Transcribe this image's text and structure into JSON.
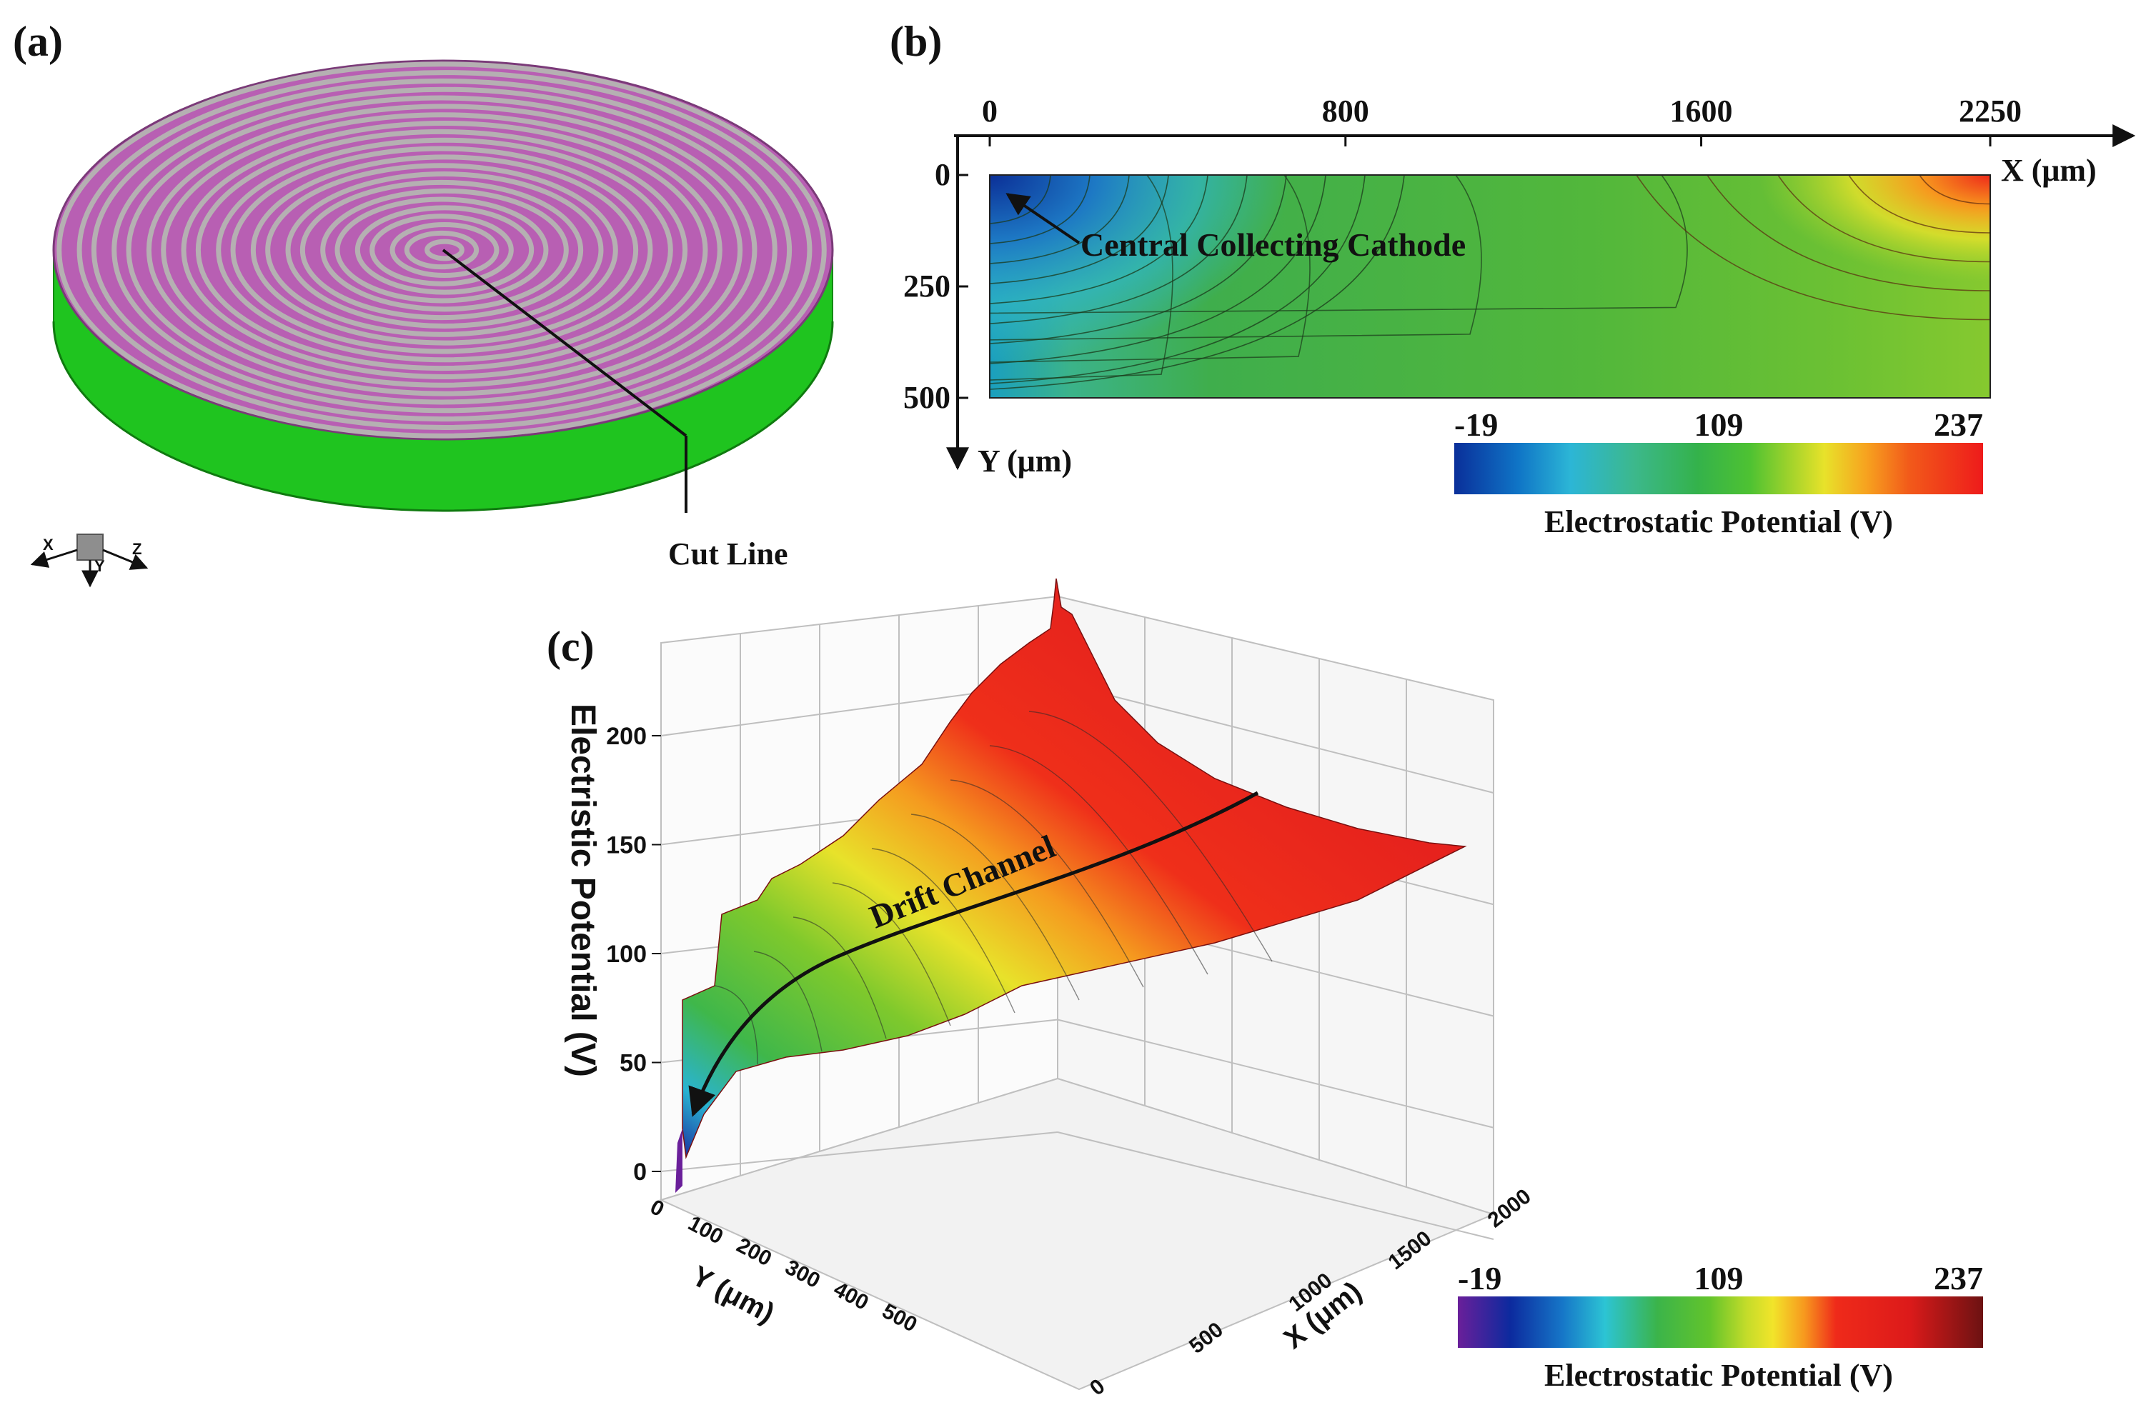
{
  "panel_a": {
    "label": "(a)",
    "cut_line_label": "Cut Line",
    "axes_triad": {
      "x": "X",
      "y": "Y",
      "z": "Z"
    },
    "colors": {
      "spiral_top": "#b85fb3",
      "spiral_gap": "#b5b0b2",
      "side_wall": "#1fc41f"
    }
  },
  "panel_b": {
    "label": "(b)",
    "x_axis": {
      "label": "X (μm)",
      "ticks": [
        "0",
        "800",
        "1600",
        "2250"
      ],
      "tick_values": [
        0,
        800,
        1600,
        2250
      ]
    },
    "y_axis": {
      "label": "Y (μm)",
      "ticks": [
        "0",
        "250",
        "500"
      ],
      "tick_values": [
        0,
        250,
        500
      ]
    },
    "annotation": "Central Collecting Cathode",
    "colorbar": {
      "min_label": "-19",
      "mid_label": "109",
      "max_label": "237",
      "title": "Electrostatic Potential (V)",
      "min": -19,
      "mid": 109,
      "max": 237
    }
  },
  "panel_c": {
    "label": "(c)",
    "z_axis": {
      "label": "Electristic Potential (V)",
      "ticks": [
        "0",
        "50",
        "100",
        "150",
        "200"
      ],
      "tick_values": [
        0,
        50,
        100,
        150,
        200
      ]
    },
    "y_axis": {
      "label": "Y (μm)",
      "ticks": [
        "0",
        "100",
        "200",
        "300",
        "400",
        "500"
      ]
    },
    "x_axis": {
      "label": "X (μm)",
      "ticks": [
        "0",
        "500",
        "1000",
        "1500",
        "2000"
      ]
    },
    "annotation": "Drift Channel",
    "colorbar": {
      "min_label": "-19",
      "mid_label": "109",
      "max_label": "237",
      "title": "Electrostatic Potential (V)",
      "min": -19,
      "mid": 109,
      "max": 237
    }
  }
}
